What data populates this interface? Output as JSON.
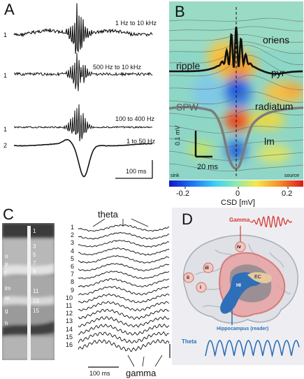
{
  "panel_a": {
    "letter": "A",
    "traces": [
      {
        "num": "1",
        "band": "1 Hz to 10 kHz"
      },
      {
        "num": "1",
        "band": "500 Hz to 10 kHz"
      },
      {
        "num": "1",
        "band": "100 to 400 Hz"
      },
      {
        "num": "2",
        "band": "1 to 50 Hz"
      }
    ],
    "scale": "100 ms"
  },
  "panel_b": {
    "letter": "B",
    "labels": {
      "oriens": "oriens",
      "ripple": "ripple",
      "pyr": "pyr",
      "spw": "SPW",
      "radiatum": "radiatum",
      "lm": "lm",
      "scale_v": "0.1 mV",
      "scale_t": "20 ms"
    },
    "colorbar": {
      "sink": "sink",
      "source": "source",
      "ticks": [
        "-0.2",
        "0",
        "0.2"
      ],
      "label": "CSD [mV]"
    }
  },
  "panel_c": {
    "letter": "C",
    "theta": "theta",
    "gamma": "gamma",
    "scale": "100 ms",
    "channels": [
      "1",
      "2",
      "3",
      "4",
      "5",
      "6",
      "7",
      "8",
      "9",
      "10",
      "11",
      "12",
      "13",
      "14",
      "15",
      "16"
    ],
    "layers": [
      "o",
      "p",
      "r",
      "lm",
      "m",
      "g",
      "h"
    ]
  },
  "panel_d": {
    "letter": "D",
    "gamma": "Gamma",
    "theta": "Theta",
    "reader": "Hippocampus (reader)",
    "regions": [
      "i",
      "ii",
      "iii",
      "iv"
    ],
    "ec": "EC",
    "hi": "HI",
    "colors": {
      "gamma": "#d6382f",
      "theta": "#2f6fb8",
      "cortex": "#e8a2a2"
    }
  }
}
